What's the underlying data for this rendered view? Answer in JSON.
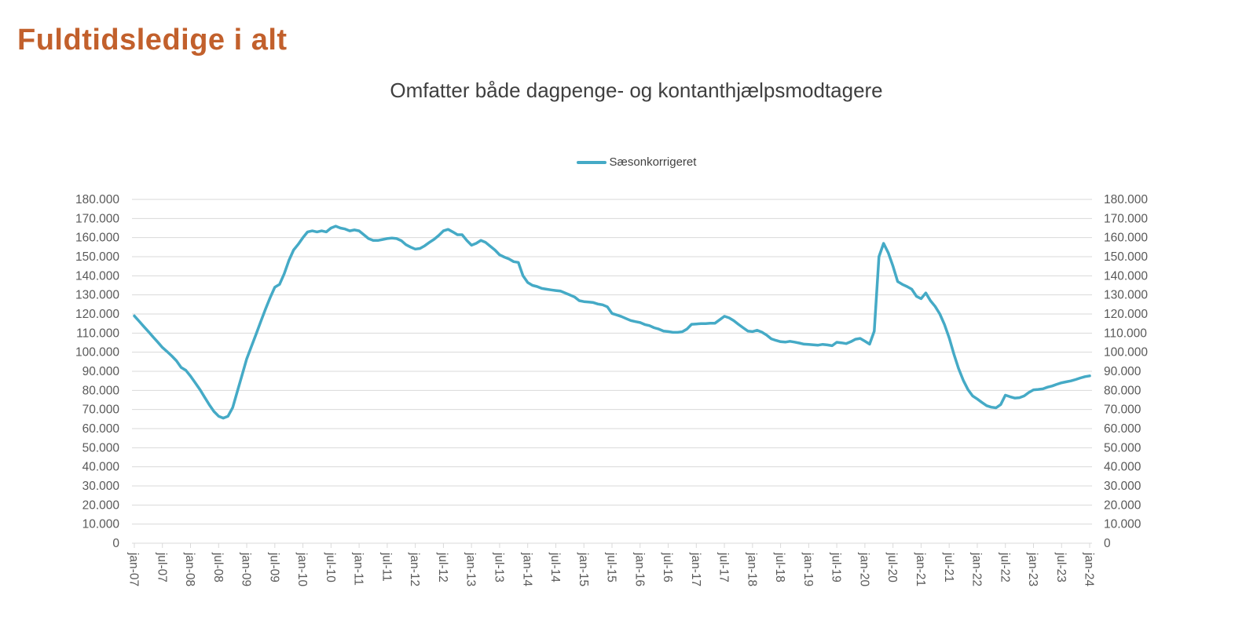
{
  "header": {
    "title": "Fuldtidsledige i alt"
  },
  "chart": {
    "subtitle": "Omfatter både dagpenge- og kontanthjælpsmodtagere",
    "legend": {
      "label": "Sæsonkorrigeret"
    }
  },
  "colors": {
    "title": "#C2602C",
    "series_line": "#45AAC6",
    "grid": "#D9D9D9",
    "axis_text": "#595959",
    "subtitle_text": "#3F3F3F"
  },
  "chart_data": {
    "type": "line",
    "title": "Omfatter både dagpenge- og kontanthjælpsmodtagere",
    "xlabel": "",
    "ylabel": "",
    "ylim": [
      0,
      180000
    ],
    "y_tick_step": 10000,
    "y_tick_labels": [
      "0",
      "10.000",
      "20.000",
      "30.000",
      "40.000",
      "50.000",
      "60.000",
      "70.000",
      "80.000",
      "90.000",
      "100.000",
      "110.000",
      "120.000",
      "130.000",
      "140.000",
      "150.000",
      "160.000",
      "170.000",
      "180.000"
    ],
    "y_axis_sides": "both",
    "grid": "horizontal",
    "legend_position": "top-center",
    "x_tick_labels": [
      "jan-07",
      "jul-07",
      "jan-08",
      "jul-08",
      "jan-09",
      "jul-09",
      "jan-10",
      "jul-10",
      "jan-11",
      "jul-11",
      "jan-12",
      "jul-12",
      "jan-13",
      "jul-13",
      "jan-14",
      "jul-14",
      "jan-15",
      "jul-15",
      "jan-16",
      "jul-16",
      "jan-17",
      "jul-17",
      "jan-18",
      "jul-18",
      "jan-19",
      "jul-19",
      "jan-20",
      "jul-20",
      "jan-21",
      "jul-21",
      "jan-22",
      "jul-22",
      "jan-23",
      "jul-23",
      "jan-24"
    ],
    "x_tick_every_n_points": 6,
    "x_monthly_start": "jan-07",
    "x_monthly_end": "jan-24",
    "series": [
      {
        "name": "Sæsonkorrigeret",
        "color": "#45AAC6",
        "values": [
          119000,
          116300,
          113500,
          110800,
          108000,
          105300,
          102500,
          100300,
          98000,
          95500,
          92000,
          90500,
          87500,
          84000,
          80500,
          76500,
          72500,
          69000,
          66500,
          65500,
          66500,
          71000,
          79500,
          88000,
          96500,
          103000,
          109500,
          116000,
          122500,
          128500,
          134000,
          135500,
          141000,
          148000,
          153500,
          156500,
          160000,
          163000,
          163500,
          163000,
          163500,
          163000,
          165000,
          166000,
          165000,
          164500,
          163500,
          164000,
          163500,
          161500,
          159500,
          158500,
          158500,
          159000,
          159500,
          159800,
          159500,
          158400,
          156300,
          155000,
          154000,
          154300,
          155700,
          157500,
          159100,
          161100,
          163500,
          164300,
          163000,
          161500,
          161500,
          158500,
          156000,
          157000,
          158500,
          157500,
          155500,
          153500,
          151000,
          149800,
          148800,
          147400,
          147000,
          140000,
          136500,
          135000,
          134400,
          133400,
          133000,
          132600,
          132300,
          132000,
          131000,
          130000,
          128900,
          127000,
          126500,
          126300,
          126000,
          125200,
          124800,
          123800,
          120300,
          119500,
          118700,
          117600,
          116600,
          116000,
          115500,
          114500,
          113900,
          112800,
          112100,
          111100,
          110800,
          110400,
          110400,
          110700,
          112100,
          114600,
          114800,
          115000,
          115000,
          115200,
          115200,
          117000,
          118800,
          118000,
          116500,
          114600,
          112800,
          111100,
          110800,
          111500,
          110500,
          109000,
          107000,
          106200,
          105500,
          105300,
          105700,
          105300,
          104800,
          104200,
          104100,
          103900,
          103700,
          104100,
          103800,
          103400,
          105200,
          104900,
          104500,
          105500,
          106800,
          107200,
          105800,
          104200,
          111000,
          150000,
          157000,
          152000,
          145000,
          137000,
          135500,
          134400,
          133000,
          129300,
          128000,
          131000,
          127000,
          124000,
          120000,
          114500,
          107500,
          99000,
          91500,
          85300,
          80500,
          77100,
          75500,
          73700,
          72000,
          71200,
          70900,
          72600,
          77500,
          76700,
          76000,
          76200,
          77100,
          78900,
          80300,
          80500,
          80800,
          81700,
          82300,
          83200,
          84000,
          84500,
          85000,
          85700,
          86500,
          87200,
          87600
        ]
      }
    ]
  }
}
